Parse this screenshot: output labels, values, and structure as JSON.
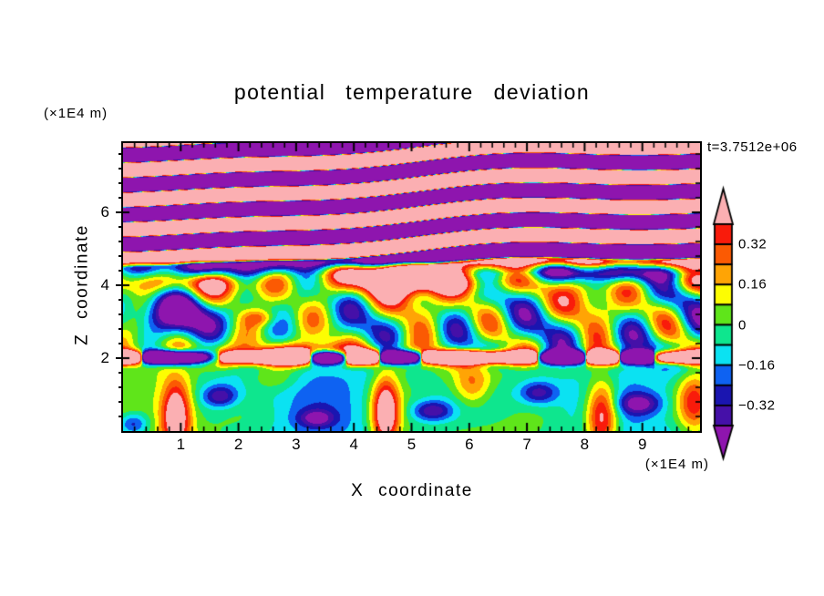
{
  "page": {
    "background": "#ffffff"
  },
  "chart": {
    "title": "potential temperature deviation",
    "timestamp": "t=3.7512e+06",
    "x_axis": {
      "label": "X coordinate",
      "unit": "(×1E4 m)",
      "range": [
        0,
        10
      ],
      "major_ticks": [
        1,
        2,
        3,
        4,
        5,
        6,
        7,
        8,
        9
      ],
      "major_tick_labels": [
        "1",
        "2",
        "3",
        "4",
        "5",
        "6",
        "7",
        "8",
        "9"
      ],
      "minor_tick_step": 0.2
    },
    "z_axis": {
      "label": "Z coordinate",
      "unit": "(×1E4 m)",
      "range": [
        0,
        7.9
      ],
      "major_ticks": [
        2,
        4,
        6
      ],
      "major_tick_labels": [
        "2",
        "4",
        "6"
      ],
      "minor_tick_step": 0.4
    },
    "colorbar": {
      "boundary_values_top_to_bottom": [
        0.4,
        0.32,
        0.24,
        0.16,
        0.08,
        0,
        -0.08,
        -0.16,
        -0.24,
        -0.32,
        -0.4
      ],
      "cell_colors_top_to_bottom": [
        "#F91B0B",
        "#FB5A03",
        "#FFA405",
        "#FDFD02",
        "#5FE51A",
        "#0EE68E",
        "#0BE2F2",
        "#0E62F2",
        "#1A15B0",
        "#4510A8"
      ],
      "above_max_color": "#FBAFB2",
      "below_min_color": "#8E15AE",
      "labels": [
        {
          "boundary_index": 1,
          "text": "0.32"
        },
        {
          "boundary_index": 3,
          "text": "0.16"
        },
        {
          "boundary_index": 5,
          "text": "0"
        },
        {
          "boundary_index": 7,
          "text": "−0.16"
        },
        {
          "boundary_index": 9,
          "text": "−0.32"
        }
      ]
    },
    "chart_data": {
      "type": "heatmap",
      "subtype": "filled_contour",
      "quantity": "potential temperature deviation",
      "time": "t=3.7512e+06",
      "x_range": [
        0,
        10
      ],
      "z_range": [
        0,
        7.9
      ],
      "contour_interval": 0.08,
      "levels": [
        -0.4,
        -0.32,
        -0.24,
        -0.16,
        -0.08,
        0,
        0.08,
        0.16,
        0.24,
        0.32,
        0.4
      ],
      "palette_low_to_high": [
        "#8E15AE",
        "#4510A8",
        "#1A15B0",
        "#0E62F2",
        "#0BE2F2",
        "#0EE68E",
        "#5FE51A",
        "#FDFD02",
        "#FFA405",
        "#FB5A03",
        "#F91B0B",
        "#FBAFB2"
      ],
      "features": [
        "alternating saturated pink (>+0.4) / purple (<-0.4) gravity-wave bands for z above ~4.7, slightly tilted and undulating",
        "strong warm anomaly exceeding +0.4 centered near x=4.9, z=4.3 (red/orange with pink core)",
        "turbulent green/cyan/yellow layer with ±0.2 filaments between z≈2.3 and z≈4.5; cooler cyan-blue pocket near x=1, z=3.2",
        "thin inversion layer near z≈2 with alternating ±0.4 pink/purple streaks",
        "convective layer below z≈2: warm plumes (yellow/orange/red) rising near x≈0.9, 4.6, 8.3 and 9.9; cool dark-blue pockets near (1.7,0.95), (3.4,0.35), (5.4,0.55), (7.2,1.05), (9.0,0.75)"
      ],
      "field_formula_js": "const G=(v,c,w)=>{const t=(v-c)/w;return Math.exp(-t*t)};const S=t=>1/(1+Math.exp(-t));const P=(s,p)=>(s<0?-1:1)*Math.pow(Math.abs(s),p);const up=S((z-4.62)/0.1),lo=S((1.85-z)/0.1),mid=Math.max(0,1-up-lo);const Fup=1.15*P(Math.sin(7.7*(z-0.06*x+0.12*Math.sin(0.62*x+0.4)+0.055*Math.sin(1.35*x+2.2))+2.3),0.5);const Fmid=0.06+0.26*Math.sin(2.1*x+1.6*z+0.8)*Math.sin(1.3*z+1.2*Math.sin(1.9*x+0.4))+0.17*Math.sin(4.3*x+3*z+2.5)+0.12*Math.sin(6.1*x-2.3*z+1.1)+0.55*G(x,4.95,1.4)*G(z,4.3,0.5)+0.38*G(x,4.8,0.7)*G(z,4.35,0.28)-0.5*G(x,8.1,1.2)*G(z,4.4,0.35)-0.45*G(x,1.6,1.1)*G(z,4.45,0.3)-0.4*G(x,0.95,1)*G(z,3.2,0.6)+0.22*G(z,4.05,0.3)*(0.6+0.4*Math.sin(1.3*x+0.5))+0.24*G(x,2.4,0.3)*G(z,3.1,0.22);const Fin=1.3*G(z,2.02,0.17)*P(Math.sin(3.2*x+1.7*Math.sin(1.4*x+0.6)+0.6),0.5)+0.5*G(z,2.12,0.28)*G(x,3.3,0.85);const Flo=-0.05+0.1*Math.sin(1.15*x+0.7)+0.07*Math.sin(2.6*x+2)*Math.sin(1.8*z+0.3)-0.13*G(x,2.3,0.9)*G(z,1.4,0.6)-0.12*G(x,6.45,1)*G(z,0.9,0.7)+0.62*G(x,0.92,0.26)*G(z,0.45,0.95)+0.65*G(x,4.55,0.24)*G(z,0.5,1)+0.6*G(x,8.3,0.28)*G(z,0.45,0.95)+0.26*G(x,2.62,0.5)*G(z,1.5,0.45)+0.3*G(x,6.05,0.33)*G(z,1.25,0.6)+0.45*G(x,9.9,0.3)*G(z,0.8,0.8)-0.35*G(x,1.68,0.3)*G(z,0.95,0.3)-0.3*G(x,3.35,0.32)*G(z,0.35,0.25)-0.36*G(x,5.35,0.34)*G(z,0.55,0.28)-0.34*G(x,7.2,0.33)*G(z,1.05,0.32)-0.37*G(x,8.95,0.36)*G(z,0.75,0.3)-0.3*G(x,0.18,0.25)*G(z,0.2,0.3);return up*Fup+mid*Fmid+lo*Flo+Fin;"
    }
  }
}
